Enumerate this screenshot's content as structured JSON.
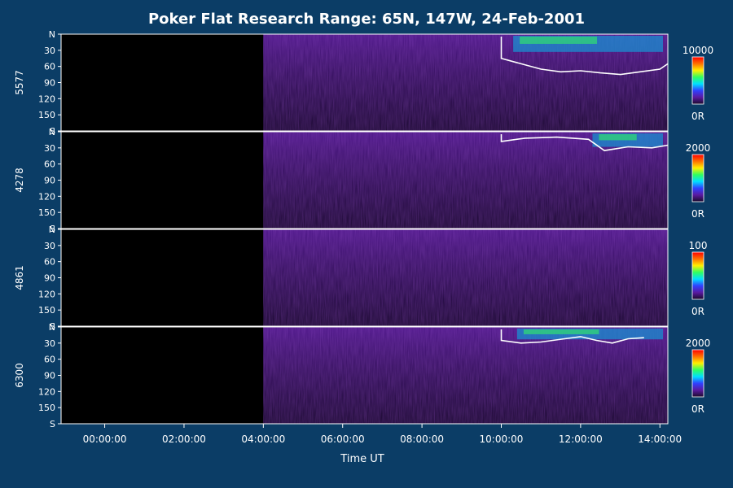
{
  "chart_data": {
    "type": "heatmap",
    "title": "Poker Flat Research Range: 65N, 147W, 24-Feb-2001",
    "xlabel": "Time UT",
    "x_ticks": [
      "00:00:00",
      "02:00:00",
      "04:00:00",
      "06:00:00",
      "08:00:00",
      "10:00:00",
      "12:00:00",
      "14:00:00"
    ],
    "x_tick_hours": [
      0,
      2,
      4,
      6,
      8,
      10,
      12,
      14
    ],
    "xlim_hours": [
      -1.1,
      14.2
    ],
    "y_ticks": [
      "N",
      "30",
      "60",
      "90",
      "120",
      "150",
      "S"
    ],
    "y_tick_values": [
      0,
      30,
      60,
      90,
      120,
      150,
      180
    ],
    "ylim": [
      0,
      180
    ],
    "colormap": [
      "#1a0a2a",
      "#5a1aa0",
      "#3040ff",
      "#00e0ff",
      "#30ff60",
      "#fff000",
      "#ff7000",
      "#ff0000"
    ],
    "data_start_hours": 4.0,
    "panels": [
      {
        "name": "5577",
        "colorbar_max": "10000",
        "colorbar_min": "0R",
        "contour_from_hours": 10.0,
        "contour_bottom": [
          [
            10.0,
            45
          ],
          [
            10.5,
            55
          ],
          [
            11.0,
            65
          ],
          [
            11.5,
            70
          ],
          [
            12.0,
            68
          ],
          [
            12.5,
            72
          ],
          [
            13.0,
            75
          ],
          [
            13.5,
            70
          ],
          [
            14.0,
            65
          ],
          [
            14.2,
            55
          ]
        ],
        "bright_from_hours": 10.3,
        "bright_depth": 30
      },
      {
        "name": "4278",
        "colorbar_max": "2000",
        "colorbar_min": "0R",
        "contour_from_hours": 10.0,
        "contour_bottom": [
          [
            10.0,
            18
          ],
          [
            10.6,
            12
          ],
          [
            11.4,
            10
          ],
          [
            12.2,
            14
          ],
          [
            12.6,
            35
          ],
          [
            13.2,
            28
          ],
          [
            13.8,
            30
          ],
          [
            14.2,
            25
          ]
        ],
        "bright_from_hours": 12.3,
        "bright_depth": 25
      },
      {
        "name": "4861",
        "colorbar_max": "100",
        "colorbar_min": "0R",
        "contour_from_hours": 14.5,
        "contour_bottom": [],
        "bright_from_hours": 4.0,
        "bright_depth": 0
      },
      {
        "name": "6300",
        "colorbar_max": "2000",
        "colorbar_min": "0R",
        "contour_from_hours": 10.0,
        "contour_bottom": [
          [
            10.0,
            25
          ],
          [
            10.5,
            30
          ],
          [
            11.0,
            28
          ],
          [
            11.6,
            22
          ],
          [
            12.0,
            18
          ],
          [
            12.4,
            25
          ],
          [
            12.8,
            30
          ],
          [
            13.2,
            22
          ],
          [
            13.6,
            20
          ]
        ],
        "bright_from_hours": 10.4,
        "bright_depth": 20
      }
    ]
  }
}
